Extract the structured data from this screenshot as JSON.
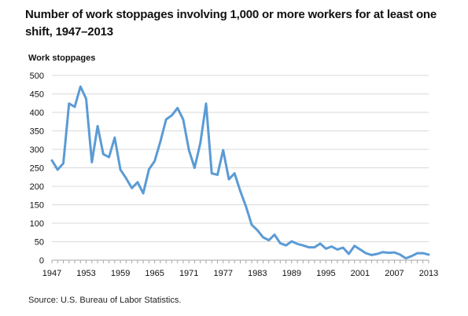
{
  "chart_data": {
    "type": "line",
    "title": "Number of work stoppages involving 1,000 or more workers for at least one shift, 1947–2013",
    "ylabel": "Work stoppages",
    "xlabel": "",
    "source": "Source: U.S. Bureau of Labor Statistics.",
    "xlim": [
      1947,
      2013
    ],
    "ylim": [
      0,
      500
    ],
    "yticks": [
      0,
      50,
      100,
      150,
      200,
      250,
      300,
      350,
      400,
      450,
      500
    ],
    "xticks": [
      1947,
      1953,
      1959,
      1965,
      1971,
      1977,
      1983,
      1989,
      1995,
      2001,
      2007,
      2013
    ],
    "grid": "horizontal",
    "line_color": "#5b9bd5",
    "series": [
      {
        "x": [
          1947,
          1948,
          1949,
          1950,
          1951,
          1952,
          1953,
          1954,
          1955,
          1956,
          1957,
          1958,
          1959,
          1960,
          1961,
          1962,
          1963,
          1964,
          1965,
          1966,
          1967,
          1968,
          1969,
          1970,
          1971,
          1972,
          1973,
          1974,
          1975,
          1976,
          1977,
          1978,
          1979,
          1980,
          1981,
          1982,
          1983,
          1984,
          1985,
          1986,
          1987,
          1988,
          1989,
          1990,
          1991,
          1992,
          1993,
          1994,
          1995,
          1996,
          1997,
          1998,
          1999,
          2000,
          2001,
          2002,
          2003,
          2004,
          2005,
          2006,
          2007,
          2008,
          2009,
          2010,
          2011,
          2012,
          2013
        ],
        "values": [
          270,
          245,
          262,
          424,
          415,
          470,
          437,
          265,
          363,
          287,
          279,
          332,
          245,
          222,
          195,
          211,
          181,
          246,
          268,
          321,
          381,
          392,
          412,
          381,
          298,
          250,
          317,
          424,
          235,
          231,
          298,
          219,
          235,
          187,
          145,
          96,
          81,
          62,
          54,
          69,
          46,
          40,
          51,
          44,
          40,
          35,
          35,
          45,
          31,
          37,
          29,
          34,
          17,
          39,
          29,
          19,
          14,
          17,
          22,
          20,
          21,
          15,
          5,
          11,
          19,
          19,
          15
        ]
      }
    ]
  }
}
